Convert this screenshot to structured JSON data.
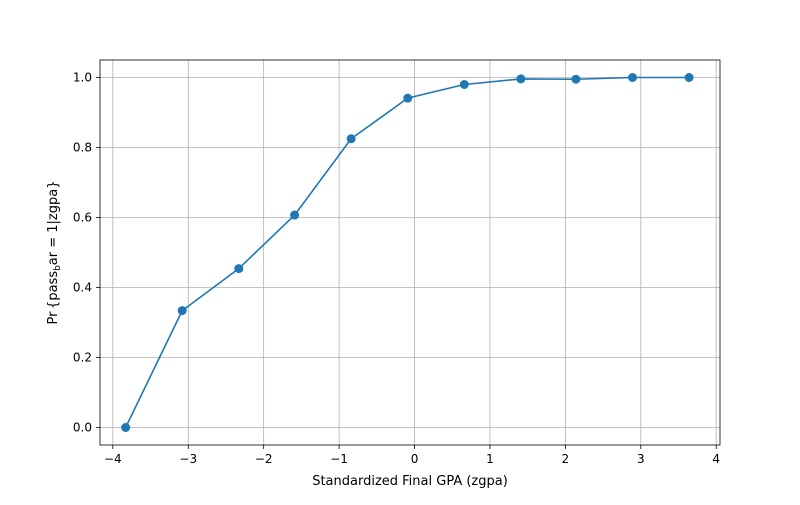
{
  "chart_data": {
    "type": "line",
    "title": "",
    "xlabel": "Standardized Final GPA (zgpa)",
    "ylabel_parts": {
      "prefix": "Pr {pass",
      "subscript": "b",
      "suffix": "ar = 1|zgpa}"
    },
    "xlim": [
      -4.17,
      4.05
    ],
    "ylim": [
      -0.05,
      1.05
    ],
    "xticks": [
      {
        "value": -4,
        "label": "−4"
      },
      {
        "value": -3,
        "label": "−3"
      },
      {
        "value": -2,
        "label": "−2"
      },
      {
        "value": -1,
        "label": "−1"
      },
      {
        "value": 0,
        "label": "0"
      },
      {
        "value": 1,
        "label": "1"
      },
      {
        "value": 2,
        "label": "2"
      },
      {
        "value": 3,
        "label": "3"
      },
      {
        "value": 4,
        "label": "4"
      }
    ],
    "yticks": [
      {
        "value": 0.0,
        "label": "0.0"
      },
      {
        "value": 0.2,
        "label": "0.2"
      },
      {
        "value": 0.4,
        "label": "0.4"
      },
      {
        "value": 0.6,
        "label": "0.6"
      },
      {
        "value": 0.8,
        "label": "0.8"
      },
      {
        "value": 1.0,
        "label": "1.0"
      }
    ],
    "grid": true,
    "series": [
      {
        "color": "#1f77b4",
        "marker": "circle",
        "x": [
          -3.83,
          -3.08,
          -2.33,
          -1.59,
          -0.84,
          -0.09,
          0.66,
          1.41,
          2.14,
          2.89,
          3.64
        ],
        "y": [
          0.0,
          0.334,
          0.454,
          0.607,
          0.825,
          0.941,
          0.98,
          0.996,
          0.995,
          1.0,
          1.0
        ]
      }
    ]
  }
}
